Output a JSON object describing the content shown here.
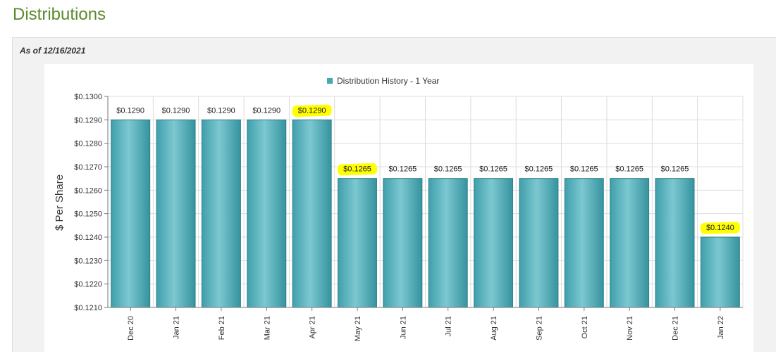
{
  "header": {
    "title": "Distributions"
  },
  "panel": {
    "as_of": "As of 12/16/2021"
  },
  "chart_data": {
    "type": "bar",
    "title": "",
    "legend": {
      "position": "top-center"
    },
    "xlabel": "",
    "ylabel": "$ Per Share",
    "ylim": [
      0.121,
      0.13
    ],
    "y_ticks": [
      "$0.1300",
      "$0.1290",
      "$0.1280",
      "$0.1270",
      "$0.1260",
      "$0.1250",
      "$0.1240",
      "$0.1230",
      "$0.1220",
      "$0.1210"
    ],
    "grid": true,
    "categories": [
      "Dec 20",
      "Jan 21",
      "Feb 21",
      "Mar 21",
      "Apr 21",
      "May 21",
      "Jun 21",
      "Jul 21",
      "Aug 21",
      "Sep 21",
      "Oct 21",
      "Nov 21",
      "Dec 21",
      "Jan 22"
    ],
    "series": [
      {
        "name": "Distribution History - 1 Year",
        "color": "#45a9b5",
        "values": [
          0.129,
          0.129,
          0.129,
          0.129,
          0.129,
          0.1265,
          0.1265,
          0.1265,
          0.1265,
          0.1265,
          0.1265,
          0.1265,
          0.1265,
          0.124
        ],
        "labels": [
          "$0.1290",
          "$0.1290",
          "$0.1290",
          "$0.1290",
          "$0.1290",
          "$0.1265",
          "$0.1265",
          "$0.1265",
          "$0.1265",
          "$0.1265",
          "$0.1265",
          "$0.1265",
          "$0.1265",
          "$0.1240"
        ]
      }
    ],
    "highlighted_label_indices": [
      4,
      5,
      13
    ],
    "highlight_color": "#ffff00"
  }
}
